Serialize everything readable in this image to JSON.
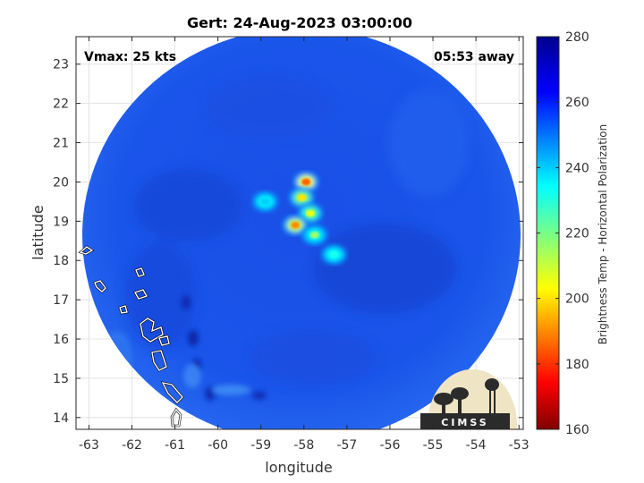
{
  "title": "Gert: 24-Aug-2023 03:00:00",
  "vmax_label": "Vmax: 25 kts",
  "away_label": "05:53 away",
  "xlabel": "longitude",
  "ylabel": "latitude",
  "colorbar_label": "Brightness Temp - Horizontal Polarization",
  "logo_text": "CIMSS",
  "x_ticks": [
    "-63",
    "-62",
    "-61",
    "-60",
    "-59",
    "-58",
    "-57",
    "-56",
    "-55",
    "-54",
    "-53"
  ],
  "y_ticks": [
    "14",
    "15",
    "16",
    "17",
    "18",
    "19",
    "20",
    "21",
    "22",
    "23"
  ],
  "colorbar_ticks": [
    "160",
    "180",
    "200",
    "220",
    "240",
    "260",
    "280"
  ],
  "chart_data": {
    "type": "heatmap",
    "title": "Gert: 24-Aug-2023 03:00:00",
    "xlabel": "longitude",
    "ylabel": "latitude",
    "xlim": [
      -63.3,
      -52.9
    ],
    "ylim": [
      13.7,
      23.7
    ],
    "colorbar": {
      "label": "Brightness Temp - Horizontal Polarization",
      "range": [
        160,
        280
      ],
      "colormap": "jet"
    },
    "background_temp": 262,
    "swath_center": [
      -58.1,
      18.7
    ],
    "convective_cells": [
      {
        "lon": -57.95,
        "lat": 20.0,
        "temp": 185
      },
      {
        "lon": -58.05,
        "lat": 19.6,
        "temp": 200
      },
      {
        "lon": -57.85,
        "lat": 19.2,
        "temp": 205
      },
      {
        "lon": -58.2,
        "lat": 18.9,
        "temp": 190
      },
      {
        "lon": -57.75,
        "lat": 18.65,
        "temp": 215
      },
      {
        "lon": -57.3,
        "lat": 18.15,
        "temp": 232
      },
      {
        "lon": -58.9,
        "lat": 19.5,
        "temp": 240
      }
    ],
    "grid": true
  }
}
